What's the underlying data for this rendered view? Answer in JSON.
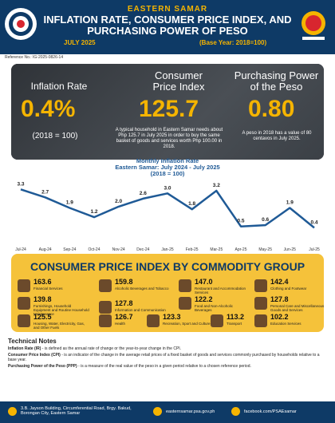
{
  "header": {
    "subtitle": "EASTERN SAMAR",
    "title": "INFLATION RATE, CONSUMER PRICE INDEX, AND PURCHASING POWER OF PESO",
    "period": "JULY 2025",
    "base": "(Base Year: 2018=100)",
    "reference": "Reference No.: IG-2025-0826-14"
  },
  "metrics": {
    "inflation_label": "Inflation Rate",
    "inflation_value": "0.4%",
    "inflation_note": "(2018 = 100)",
    "cpi_label_1": "Consumer",
    "cpi_label_2": "Price Index",
    "cpi_value": "125.7",
    "cpi_note": "A typical household in Eastern Samar needs about Php 125.7 in July 2025 in order to buy the same basket of goods and services worth Php 100.00 in 2018.",
    "ppp_label_1": "Purchasing Power",
    "ppp_label_2": "of the Peso",
    "ppp_value": "0.80",
    "ppp_note": "A peso in 2018 has a value of 80 centavos in July 2025."
  },
  "chart_title_1": "Monthly Inflation Rate",
  "chart_title_2": "Eastern Samar: July 2024 - July 2025",
  "chart_title_3": "(2018 = 100)",
  "chart_data": {
    "type": "line",
    "x": [
      "Jul-24",
      "Aug-24",
      "Sep-24",
      "Oct-24",
      "Nov-24",
      "Dec-24",
      "Jan-25",
      "Feb-25",
      "Mar-25",
      "Apr-25",
      "May-25",
      "Jun-25",
      "Jul-25"
    ],
    "y": [
      3.3,
      2.7,
      1.9,
      1.2,
      2.0,
      2.6,
      3.0,
      1.8,
      3.2,
      0.5,
      0.6,
      1.9,
      0.4
    ],
    "ylim": [
      0,
      3.5
    ],
    "grid": false,
    "line_color": "#1f5a96"
  },
  "cpi": {
    "title": "CONSUMER PRICE INDEX BY COMMODITY GROUP",
    "items": [
      {
        "value": "163.6",
        "label": "Financial Services"
      },
      {
        "value": "159.8",
        "label": "Alcoholic Beverages and Tobacco"
      },
      {
        "value": "147.0",
        "label": "Restaurant and Accommodation Services"
      },
      {
        "value": "142.4",
        "label": "Clothing and Footwear"
      },
      {
        "value": "139.8",
        "label": "Furnishings, Household Equipment and Routine Household Maintenance"
      },
      {
        "value": "127.8",
        "label": "Information and Communication"
      },
      {
        "value": "122.2",
        "label": "Food and Non-Alcoholic Beverages"
      },
      {
        "value": "127.8",
        "label": "Personal Care and Miscellaneous Goods and Services"
      },
      {
        "value": "125.5",
        "label": "Housing, Water, Electricity, Gas, and Other Fuels"
      },
      {
        "value": "126.7",
        "label": "Health"
      },
      {
        "value": "123.3",
        "label": "Recreation, Sport and Culture"
      },
      {
        "value": "113.2",
        "label": "Transport"
      },
      {
        "value": "102.2",
        "label": "Education Services"
      }
    ]
  },
  "technical": {
    "title": "Technical Notes",
    "ir_term": "Inflation Rate (IR)",
    "ir_def": " - is defined as the annual rate of change or the year-to-year change in the CPI.",
    "cpi_term": "Consumer Price Index (CPI)",
    "cpi_def": " - is an indicator of the change in the average retail prices of a fixed basket of goods and services commonly purchased by households relative to a base year.",
    "ppp_term": "Purchasing Power of the Peso (PPP)",
    "ppp_def": " - is a measure of the real value of the peso in a given period relative to a chosen reference period."
  },
  "footer": {
    "address": "3.B. Jayson Building, Circumferential Road, Brgy. Bakud, Borongan City, Eastern Samar",
    "email": "easternsamar.psa.gov.ph",
    "facebook": "facebook.com/PSAEsamar"
  },
  "colors": {
    "navy": "#0e3a66",
    "gold": "#f5b400",
    "panel": "#3b4046",
    "line": "#1f5a96"
  }
}
